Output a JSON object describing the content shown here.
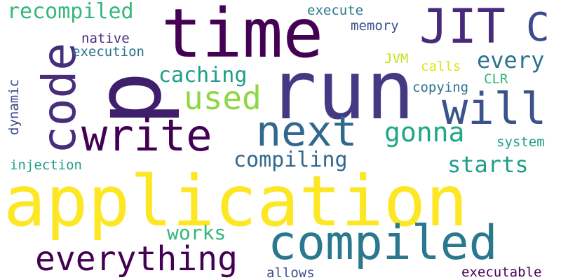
{
  "words": [
    {
      "id": "p",
      "text": "p",
      "color": "#3f1f6b"
    },
    {
      "id": "time",
      "text": "time",
      "color": "#440154"
    },
    {
      "id": "run",
      "text": "run",
      "color": "#443983"
    },
    {
      "id": "jit",
      "text": "JIT",
      "color": "#472a7a"
    },
    {
      "id": "c",
      "text": "C",
      "color": "#3e4a89"
    },
    {
      "id": "code",
      "text": "code",
      "color": "#472d7b"
    },
    {
      "id": "write",
      "text": "write",
      "color": "#440154"
    },
    {
      "id": "will",
      "text": "will",
      "color": "#3b528b"
    },
    {
      "id": "next",
      "text": "next",
      "color": "#31688e"
    },
    {
      "id": "gonna",
      "text": "gonna",
      "color": "#21a685"
    },
    {
      "id": "used",
      "text": "used",
      "color": "#8fd744"
    },
    {
      "id": "application",
      "text": "application",
      "color": "#fde725"
    },
    {
      "id": "compiled",
      "text": "compiled",
      "color": "#2a788e"
    },
    {
      "id": "everything",
      "text": "everything",
      "color": "#440154"
    },
    {
      "id": "recompiled",
      "text": "recompiled",
      "color": "#35b779"
    },
    {
      "id": "execute",
      "text": "execute",
      "color": "#2a788e"
    },
    {
      "id": "memory",
      "text": "memory",
      "color": "#3b528b"
    },
    {
      "id": "native",
      "text": "native",
      "color": "#472d7b"
    },
    {
      "id": "execution",
      "text": "execution",
      "color": "#2c728e"
    },
    {
      "id": "every",
      "text": "every",
      "color": "#2c728e"
    },
    {
      "id": "jvm",
      "text": "JVM",
      "color": "#c8e020"
    },
    {
      "id": "calls",
      "text": "calls",
      "color": "#dde318"
    },
    {
      "id": "clr",
      "text": "CLR",
      "color": "#35b779"
    },
    {
      "id": "caching",
      "text": "caching",
      "color": "#1f9e89"
    },
    {
      "id": "copying",
      "text": "copying",
      "color": "#2c728e"
    },
    {
      "id": "dynamic",
      "text": "dynamic",
      "color": "#3e4a89"
    },
    {
      "id": "compiling",
      "text": "compiling",
      "color": "#31688e"
    },
    {
      "id": "system",
      "text": "system",
      "color": "#1f9e89"
    },
    {
      "id": "starts",
      "text": "starts",
      "color": "#1f9e89"
    },
    {
      "id": "injection",
      "text": "injection",
      "color": "#1f9e89"
    },
    {
      "id": "works",
      "text": "works",
      "color": "#35b779"
    },
    {
      "id": "allows",
      "text": "allows",
      "color": "#3b528b"
    },
    {
      "id": "executable",
      "text": "executable",
      "color": "#440154"
    }
  ]
}
